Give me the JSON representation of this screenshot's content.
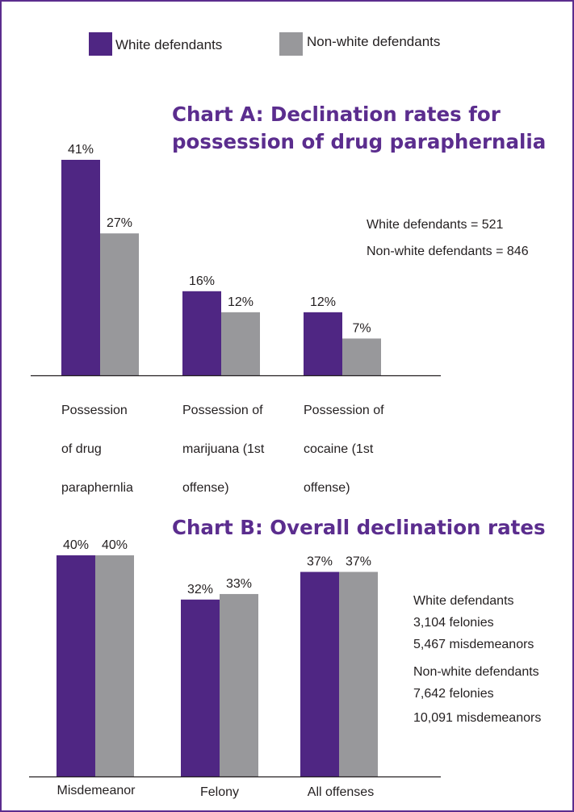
{
  "legend": {
    "items": [
      {
        "label": "White defendants",
        "color": "#4f2683"
      },
      {
        "label": "Non-white defendants",
        "color": "#98989b"
      }
    ]
  },
  "chart_data": [
    {
      "type": "bar",
      "title": "Chart A: Declination rates for possession of drug paraphernalia",
      "title_lines": [
        "Chart A: Declination rates for",
        "possession of drug paraphernalia"
      ],
      "categories": [
        "Possession of drug paraphernlia",
        "Possession of marijuana (1st offense)",
        "Possession of cocaine (1st offense)"
      ],
      "category_lines": [
        [
          "Possession",
          "of drug",
          "paraphernlia"
        ],
        [
          "Possession of",
          "marijuana (1st",
          "offense)"
        ],
        [
          "Possession of",
          "cocaine (1st",
          "offense)"
        ]
      ],
      "series": [
        {
          "name": "White defendants",
          "values": [
            41,
            16,
            12
          ],
          "labels": [
            "41%",
            "16%",
            "12%"
          ]
        },
        {
          "name": "Non-white defendants",
          "values": [
            27,
            12,
            7
          ],
          "labels": [
            "27%",
            "12%",
            "7%"
          ]
        }
      ],
      "ylim": [
        0,
        41
      ],
      "grid": false,
      "notes": [
        "White defendants = 521",
        "Non-white defendants = 846"
      ]
    },
    {
      "type": "bar",
      "title": "Chart B: Overall declination rates",
      "title_lines": [
        "Chart B: Overall declination rates"
      ],
      "categories": [
        "Misdemeanor",
        "Felony",
        "All offenses"
      ],
      "category_lines": [
        [
          "Misdemeanor"
        ],
        [
          "Felony"
        ],
        [
          "All offenses"
        ]
      ],
      "series": [
        {
          "name": "White defendants",
          "values": [
            40,
            32,
            37
          ],
          "labels": [
            "40%",
            "32%",
            "37%"
          ]
        },
        {
          "name": "Non-white defendants",
          "values": [
            40,
            33,
            37
          ],
          "labels": [
            "40%",
            "33%",
            "37%"
          ]
        }
      ],
      "ylim": [
        0,
        40
      ],
      "grid": false,
      "notes": [
        "White defendants",
        "3,104 felonies",
        "5,467 misdemeanors",
        "Non-white defendants",
        "7,642 felonies",
        "10,091 misdemeanors"
      ]
    }
  ]
}
